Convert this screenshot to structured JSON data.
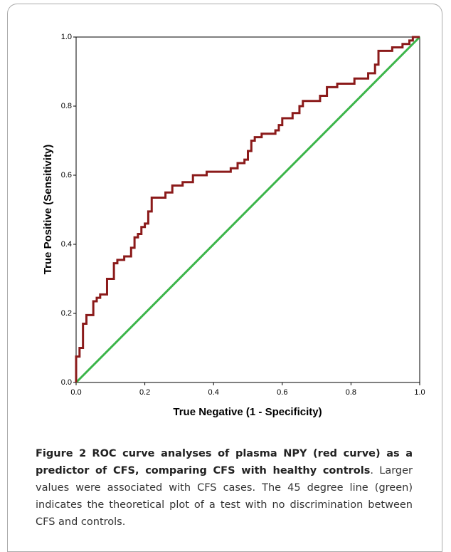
{
  "chart_data": {
    "type": "line",
    "xlabel": "True Negative (1 - Specificity)",
    "ylabel": "True Positive (Sensitivity)",
    "xlim": [
      0,
      1
    ],
    "ylim": [
      0,
      1
    ],
    "xticks": [
      {
        "value": 0,
        "label": "0.0"
      },
      0.2,
      0.4,
      0.6,
      0.8,
      {
        "value": 1,
        "label": "1.0"
      }
    ],
    "yticks": [
      {
        "value": 0,
        "label": "0.0"
      },
      0.2,
      0.4,
      0.6,
      0.8,
      {
        "value": 1,
        "label": "1.0"
      }
    ],
    "series": [
      {
        "color": "#8b1a1a",
        "x": [
          0,
          0,
          0.01,
          0.01,
          0.02,
          0.02,
          0.03,
          0.03,
          0.05,
          0.05,
          0.06,
          0.06,
          0.07,
          0.07,
          0.09,
          0.09,
          0.11,
          0.11,
          0.12,
          0.12,
          0.14,
          0.14,
          0.16,
          0.16,
          0.17,
          0.17,
          0.18,
          0.18,
          0.19,
          0.19,
          0.2,
          0.2,
          0.21,
          0.21,
          0.22,
          0.22,
          0.26,
          0.26,
          0.28,
          0.28,
          0.31,
          0.31,
          0.34,
          0.34,
          0.38,
          0.38,
          0.45,
          0.45,
          0.47,
          0.47,
          0.49,
          0.49,
          0.5,
          0.5,
          0.51,
          0.51,
          0.52,
          0.52,
          0.54,
          0.54,
          0.58,
          0.58,
          0.59,
          0.59,
          0.6,
          0.6,
          0.63,
          0.63,
          0.65,
          0.65,
          0.66,
          0.66,
          0.71,
          0.71,
          0.73,
          0.73,
          0.76,
          0.76,
          0.81,
          0.81,
          0.85,
          0.85,
          0.87,
          0.87,
          0.88,
          0.88,
          0.92,
          0.92,
          0.95,
          0.95,
          0.97,
          0.97,
          0.98,
          0.98,
          1
        ],
        "values": [
          0,
          0.075,
          0.075,
          0.1,
          0.1,
          0.17,
          0.17,
          0.195,
          0.195,
          0.235,
          0.235,
          0.245,
          0.245,
          0.255,
          0.255,
          0.3,
          0.3,
          0.345,
          0.345,
          0.355,
          0.355,
          0.365,
          0.365,
          0.39,
          0.39,
          0.42,
          0.42,
          0.43,
          0.43,
          0.45,
          0.45,
          0.46,
          0.46,
          0.495,
          0.495,
          0.535,
          0.535,
          0.55,
          0.55,
          0.57,
          0.57,
          0.58,
          0.58,
          0.6,
          0.6,
          0.61,
          0.61,
          0.62,
          0.62,
          0.635,
          0.635,
          0.645,
          0.645,
          0.67,
          0.67,
          0.7,
          0.7,
          0.71,
          0.71,
          0.72,
          0.72,
          0.73,
          0.73,
          0.745,
          0.745,
          0.765,
          0.765,
          0.78,
          0.78,
          0.8,
          0.8,
          0.815,
          0.815,
          0.83,
          0.83,
          0.855,
          0.855,
          0.865,
          0.865,
          0.88,
          0.88,
          0.895,
          0.895,
          0.92,
          0.92,
          0.96,
          0.96,
          0.97,
          0.97,
          0.98,
          0.98,
          0.99,
          0.99,
          1,
          1
        ]
      },
      {
        "color": "#3cb54a",
        "x": [
          0,
          1
        ],
        "values": [
          0,
          1
        ]
      }
    ]
  },
  "caption": {
    "label": "Figure 2",
    "title": "ROC curve analyses of plasma NPY (red curve) as a predictor of CFS, comparing CFS with healthy controls",
    "text": ". Larger values were associated with CFS cases. The 45 degree line (green) indicates the theoretical plot of a test with no discrimination between CFS and controls."
  }
}
